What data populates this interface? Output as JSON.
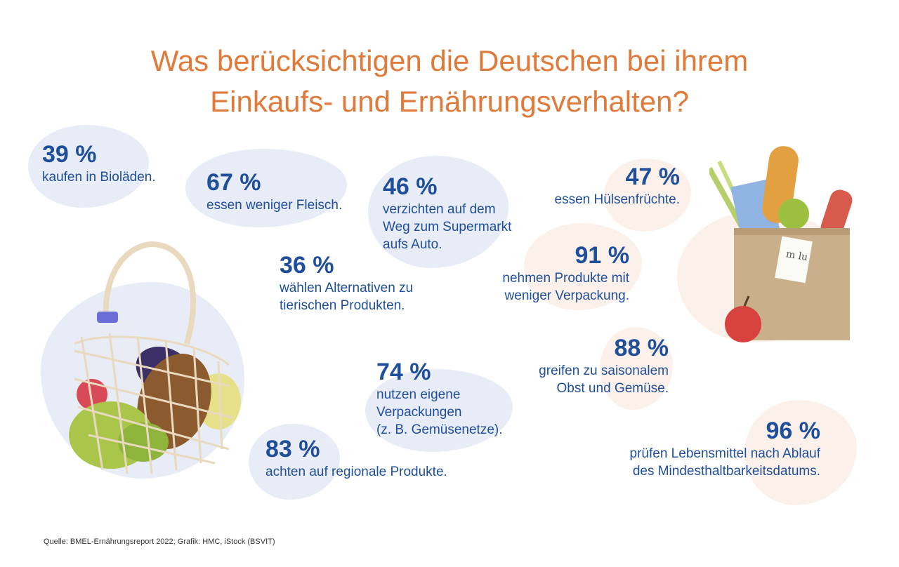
{
  "title": {
    "line1": "Was berücksichtigen die Deutschen bei ihrem",
    "line2": "Einkaufs- und Ernährungsverhalten?"
  },
  "stats": [
    {
      "percent": "39 %",
      "text": "kaufen in Bioläden."
    },
    {
      "percent": "67 %",
      "text": "essen weniger Fleisch."
    },
    {
      "percent": "46 %",
      "text": "verzichten auf dem\nWeg zum Supermarkt\naufs Auto."
    },
    {
      "percent": "47 %",
      "text": "essen Hülsenfrüchte."
    },
    {
      "percent": "36 %",
      "text": "wählen Alternativen zu\ntierischen Produkten."
    },
    {
      "percent": "91 %",
      "text": "nehmen Produkte mit\nweniger Verpackung."
    },
    {
      "percent": "74 %",
      "text": "nutzen eigene\nVerpackungen\n(z. B. Gemüsenetze)."
    },
    {
      "percent": "88 %",
      "text": "greifen zu saisonalem\nObst und Gemüse."
    },
    {
      "percent": "83 %",
      "text": "achten auf regionale Produkte."
    },
    {
      "percent": "96 %",
      "text": "prüfen Lebensmittel nach Ablauf\ndes Mindesthaltbarkeitsdatums."
    }
  ],
  "source": "Quelle: BMEL-Ernährungsreport 2022; Grafik: HMC, iStock (BSVIT)",
  "colors": {
    "title": "#e07a3a",
    "stat": "#1f4e9a",
    "blob_blue": "#e8ecf6",
    "blob_peach": "#fcf1ea"
  },
  "illustrations": {
    "net_bag": "mesh-shopping-bag-icon",
    "paper_bag": "paper-grocery-bag-icon"
  }
}
